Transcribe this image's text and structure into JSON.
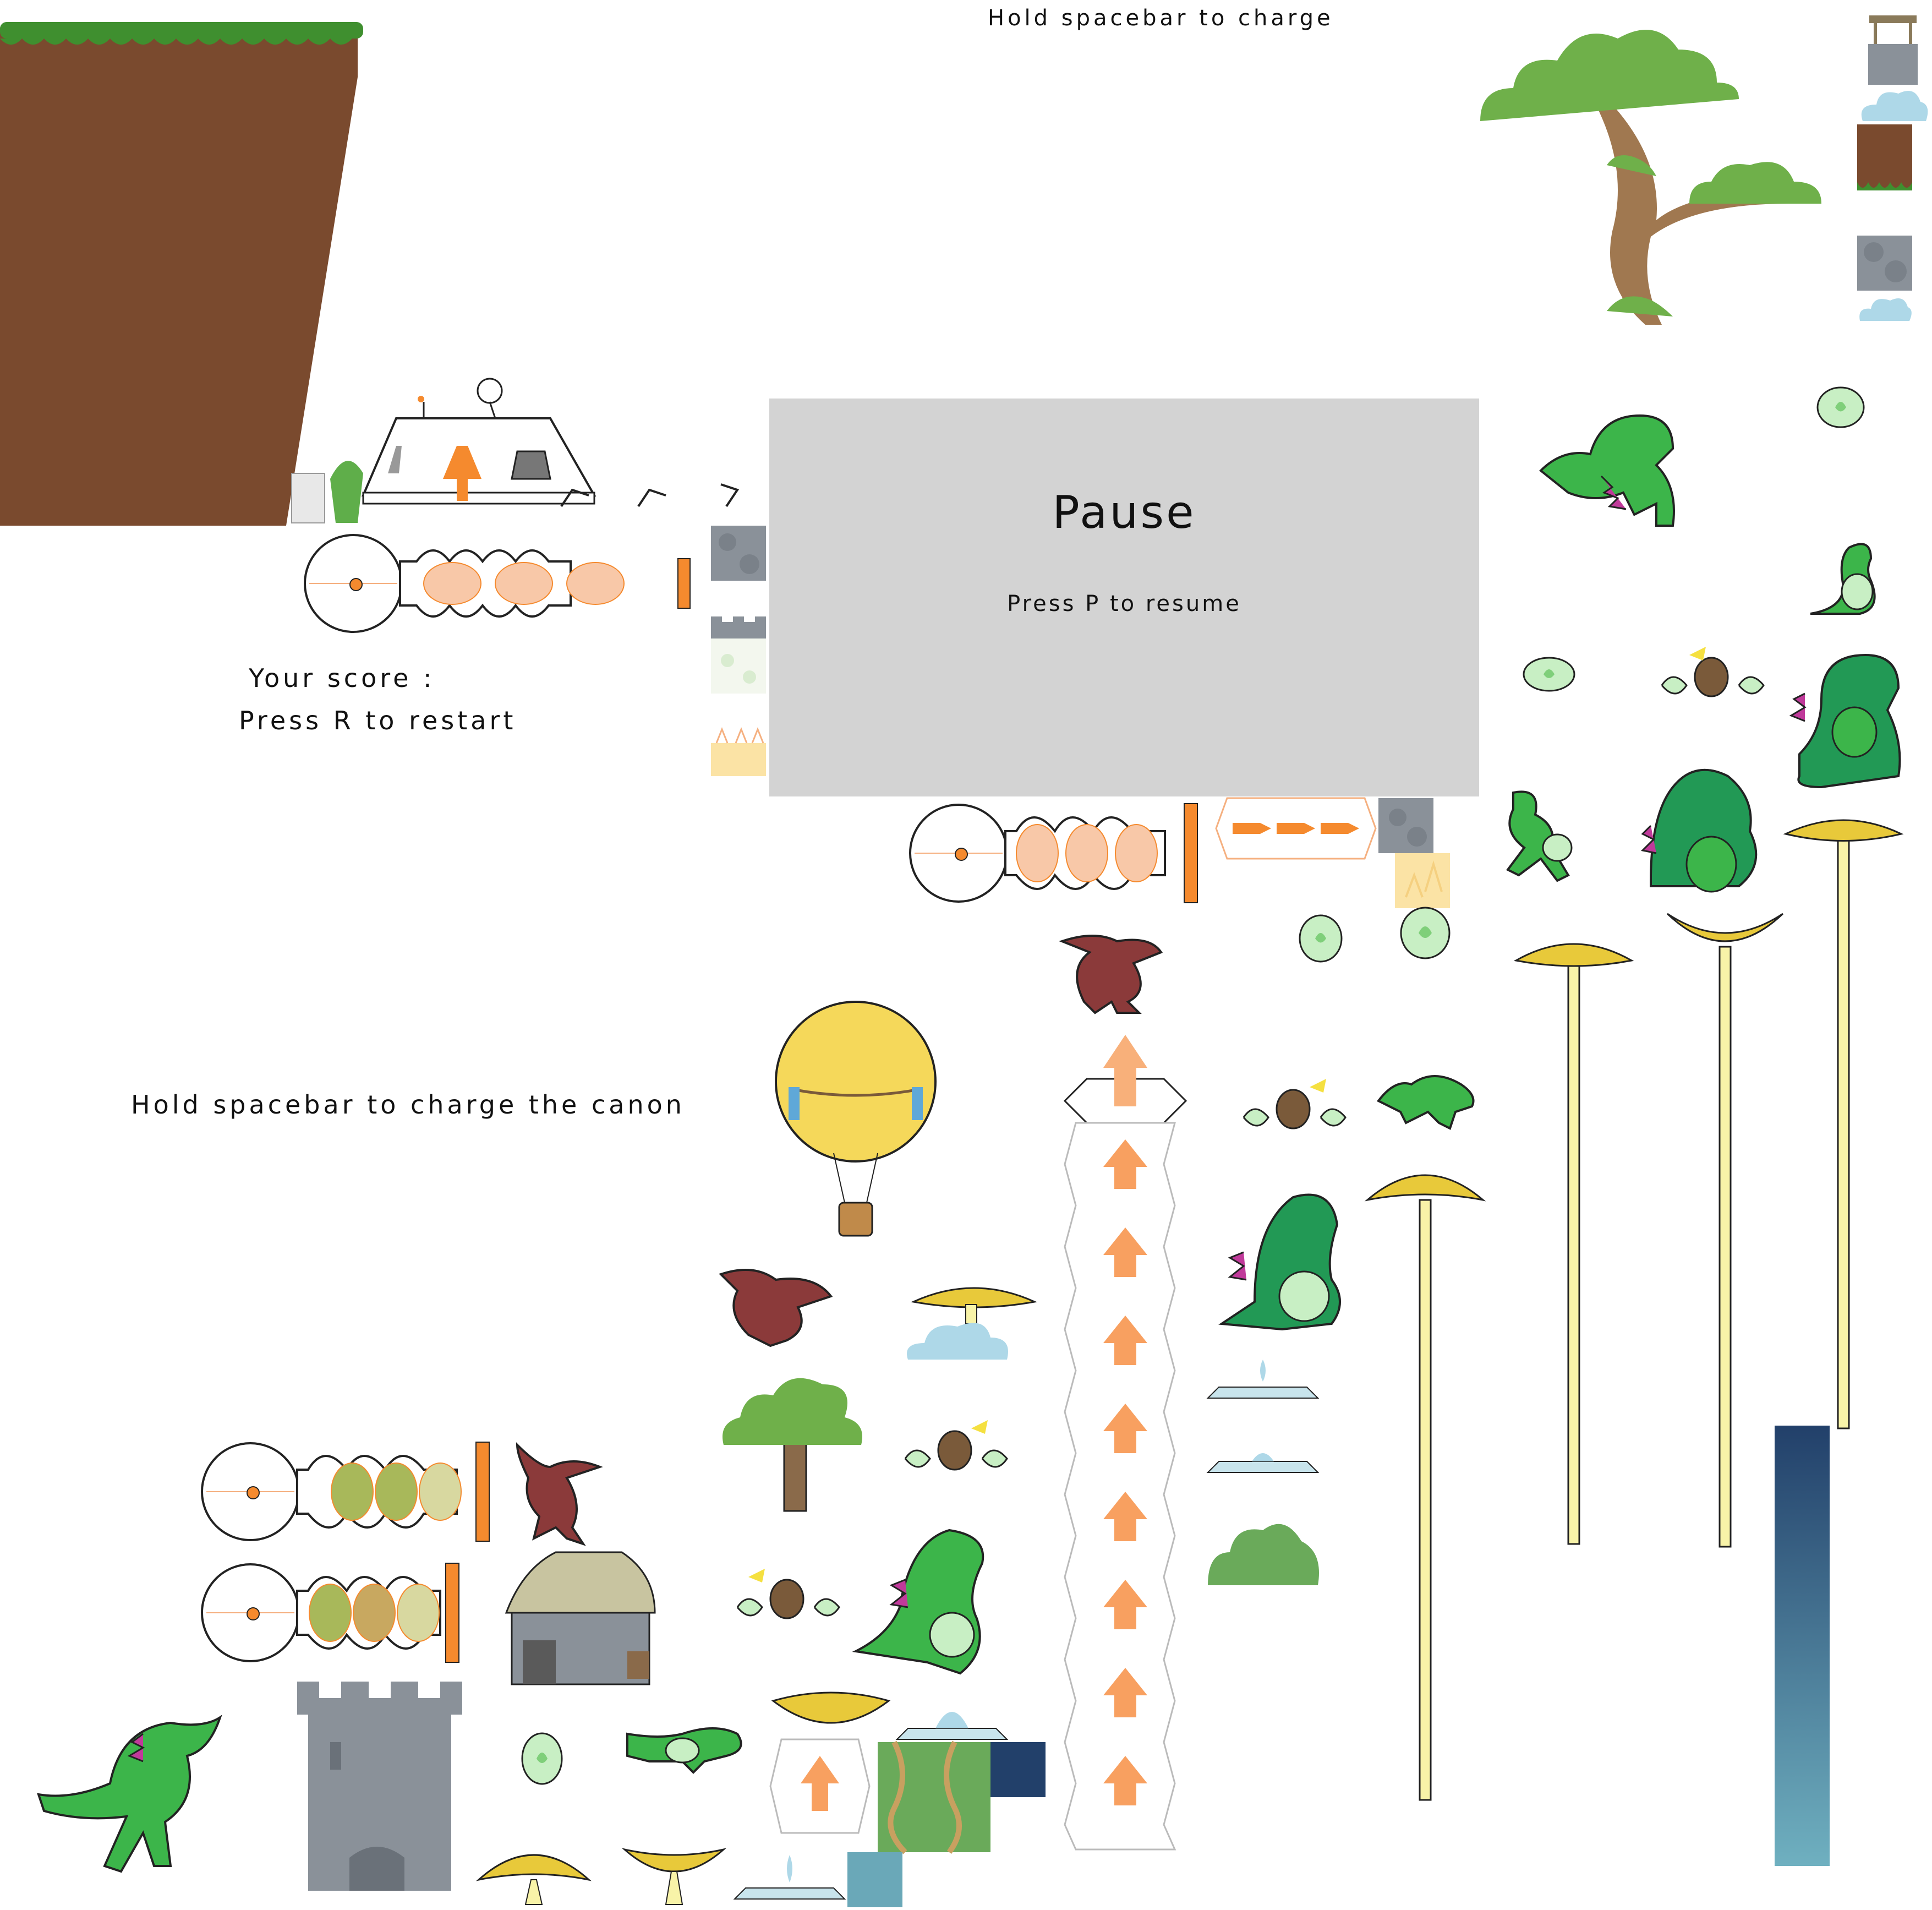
{
  "hud": {
    "charge_hint_top": "Hold spacebar to charge",
    "charge_hint_cannon": "Hold spacebar to charge the canon",
    "score_label": "Your score :",
    "restart_hint": "Press R to restart"
  },
  "pause_menu": {
    "title": "Pause",
    "resume_hint": "Press P to resume"
  },
  "palette": {
    "dirt": "#7a4a2e",
    "grass": "#3f8f2f",
    "dino_green": "#3cb54a",
    "orange_accent": "#f58a2e",
    "egg_green": "#c8efc4",
    "mushroom_yellow": "#e8c93a",
    "stone_gray": "#8a9199",
    "sky_blue": "#aed8e8",
    "night_navy": "#22406a",
    "pause_panel": "#d3d3d3"
  },
  "sprites": [
    "dirt-cliff",
    "grass-block",
    "stone-block",
    "well",
    "bonsai-tree",
    "rover-base",
    "cannon",
    "booster-arrow-column",
    "balloon",
    "pterodactyl",
    "dinosaur",
    "baby-dino",
    "egg",
    "hatched-egg",
    "mushroom-platform",
    "tall-mushroom",
    "cloud",
    "tree",
    "castle-tower",
    "stone-house",
    "fountain",
    "jungle-tile",
    "night-sky-tile",
    "bush"
  ]
}
